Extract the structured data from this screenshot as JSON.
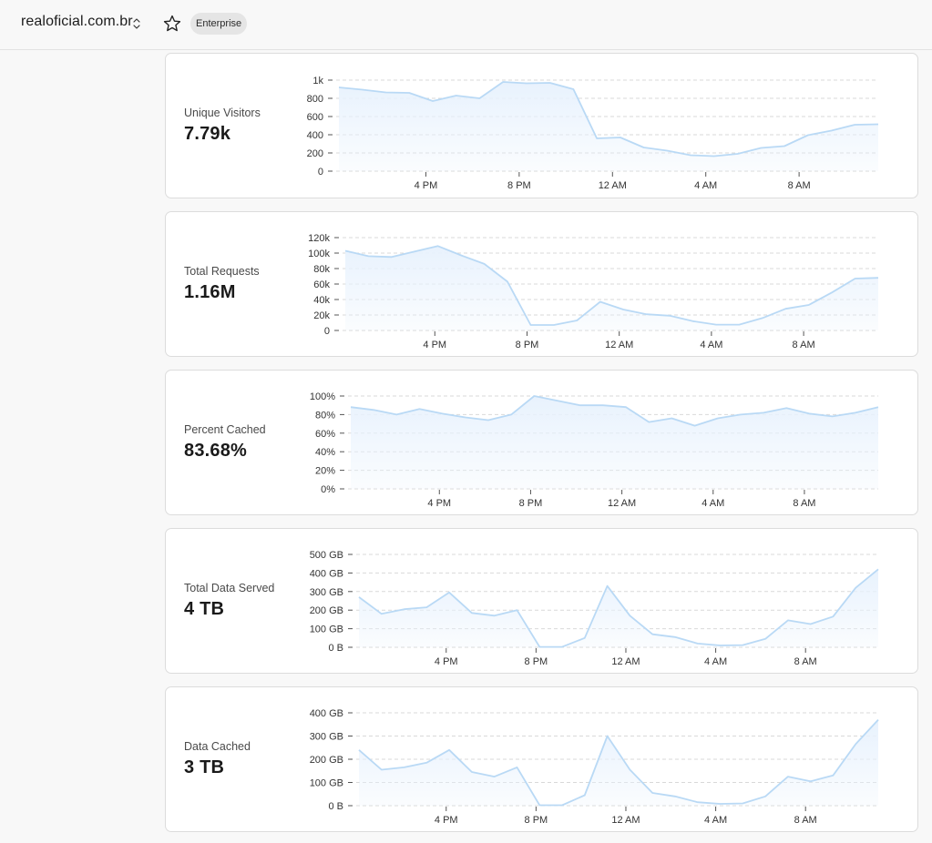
{
  "header": {
    "site": "realoficial.com.br",
    "plan_badge": "Enterprise"
  },
  "colors": {
    "line": "#b9d9f5",
    "area": "#e8f2fd",
    "grid": "#d9d9d9"
  },
  "x_labels": [
    "4 PM",
    "8 PM",
    "12 AM",
    "4 AM",
    "8 AM"
  ],
  "cards": [
    {
      "label": "Unique Visitors",
      "value": "7.79k",
      "chart_data": {
        "type": "area",
        "yticks": [
          "1k",
          "800",
          "600",
          "400",
          "200",
          "0"
        ],
        "ylim": [
          0,
          1000
        ],
        "values": [
          920,
          895,
          865,
          860,
          770,
          830,
          800,
          980,
          965,
          970,
          900,
          360,
          370,
          260,
          225,
          175,
          165,
          190,
          255,
          275,
          395,
          445,
          510,
          515
        ]
      }
    },
    {
      "label": "Total Requests",
      "value": "1.16M",
      "chart_data": {
        "type": "area",
        "yticks": [
          "120k",
          "100k",
          "80k",
          "60k",
          "40k",
          "20k",
          "0"
        ],
        "ylim": [
          0,
          120000
        ],
        "values": [
          103000,
          96000,
          95000,
          102000,
          109000,
          97000,
          86000,
          63000,
          7000,
          7000,
          13000,
          37000,
          27000,
          21000,
          19000,
          12000,
          7500,
          7500,
          16000,
          28000,
          33000,
          49000,
          67000,
          68000
        ]
      }
    },
    {
      "label": "Percent Cached",
      "value": "83.68%",
      "chart_data": {
        "type": "area",
        "yticks": [
          "100%",
          "80%",
          "60%",
          "40%",
          "20%",
          "0%"
        ],
        "ylim": [
          0,
          100
        ],
        "values": [
          88,
          85,
          80,
          86,
          81,
          77,
          74,
          80,
          100,
          95,
          90,
          90,
          88,
          72,
          76,
          68,
          76,
          80,
          82,
          87,
          81,
          78,
          82,
          88
        ]
      }
    },
    {
      "label": "Total Data Served",
      "value": "4 TB",
      "chart_data": {
        "type": "area",
        "yticks": [
          "500 GB",
          "400 GB",
          "300 GB",
          "200 GB",
          "100 GB",
          "0 B"
        ],
        "ylim": [
          0,
          500
        ],
        "values": [
          270,
          180,
          205,
          215,
          295,
          185,
          170,
          200,
          2,
          2,
          50,
          330,
          170,
          70,
          55,
          20,
          10,
          12,
          45,
          145,
          125,
          165,
          320,
          420
        ]
      }
    },
    {
      "label": "Data Cached",
      "value": "3 TB",
      "chart_data": {
        "type": "area",
        "yticks": [
          "400 GB",
          "300 GB",
          "200 GB",
          "100 GB",
          "0 B"
        ],
        "ylim": [
          0,
          400
        ],
        "values": [
          240,
          155,
          165,
          185,
          240,
          145,
          125,
          165,
          2,
          2,
          45,
          300,
          155,
          55,
          40,
          15,
          8,
          10,
          40,
          125,
          105,
          130,
          265,
          370
        ]
      }
    }
  ]
}
